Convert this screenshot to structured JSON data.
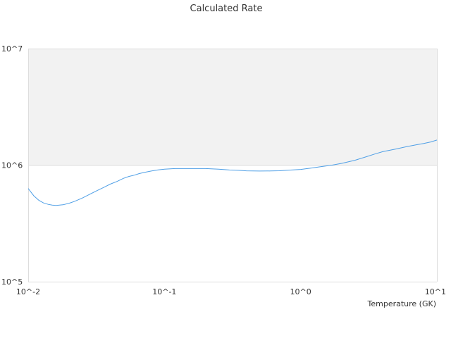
{
  "chart_data": {
    "type": "line",
    "title": "Calculated Rate",
    "xlabel": "Temperature (GK)",
    "ylabel": "",
    "x_scale": "log",
    "y_scale": "log",
    "xlim": [
      0.01,
      10
    ],
    "ylim": [
      100000,
      10000000
    ],
    "x_ticks": [
      {
        "value": 0.01,
        "label": "10^-2"
      },
      {
        "value": 0.1,
        "label": "10^-1"
      },
      {
        "value": 1,
        "label": "10^0"
      },
      {
        "value": 10,
        "label": "10^1"
      }
    ],
    "y_ticks": [
      {
        "value": 100000,
        "label": "10^5"
      },
      {
        "value": 1000000,
        "label": "10^6"
      },
      {
        "value": 10000000,
        "label": "10^7"
      }
    ],
    "grid": true,
    "shaded_band": [
      1000000,
      10000000
    ],
    "colors": {
      "line": "#4f9fe6",
      "band": "#f2f2f2",
      "grid": "#dddddd"
    },
    "series": [
      {
        "x": [
          0.01,
          0.011,
          0.012,
          0.013,
          0.014,
          0.015,
          0.016,
          0.018,
          0.02,
          0.022,
          0.025,
          0.028,
          0.032,
          0.036,
          0.04,
          0.045,
          0.05,
          0.055,
          0.06,
          0.065,
          0.07,
          0.08,
          0.09,
          0.1,
          0.12,
          0.14,
          0.17,
          0.2,
          0.25,
          0.3,
          0.35,
          0.4,
          0.5,
          0.6,
          0.7,
          0.8,
          1.0,
          1.2,
          1.4,
          1.7,
          2.0,
          2.5,
          3.0,
          3.5,
          4.0,
          5.0,
          6.0,
          7.0,
          8.0,
          9.0,
          10.0
        ],
        "values": [
          630000,
          545000,
          498000,
          473000,
          461000,
          454000,
          451000,
          457000,
          471000,
          490000,
          522000,
          559000,
          604000,
          646000,
          687000,
          725000,
          770000,
          800000,
          820000,
          845000,
          863000,
          890000,
          910000,
          924000,
          934000,
          934000,
          934000,
          934000,
          923000,
          908000,
          902000,
          893000,
          890000,
          891000,
          895000,
          905000,
          918000,
          945000,
          968000,
          1000000,
          1035000,
          1100000,
          1175000,
          1245000,
          1305000,
          1375000,
          1440000,
          1490000,
          1535000,
          1580000,
          1640000
        ]
      }
    ]
  }
}
